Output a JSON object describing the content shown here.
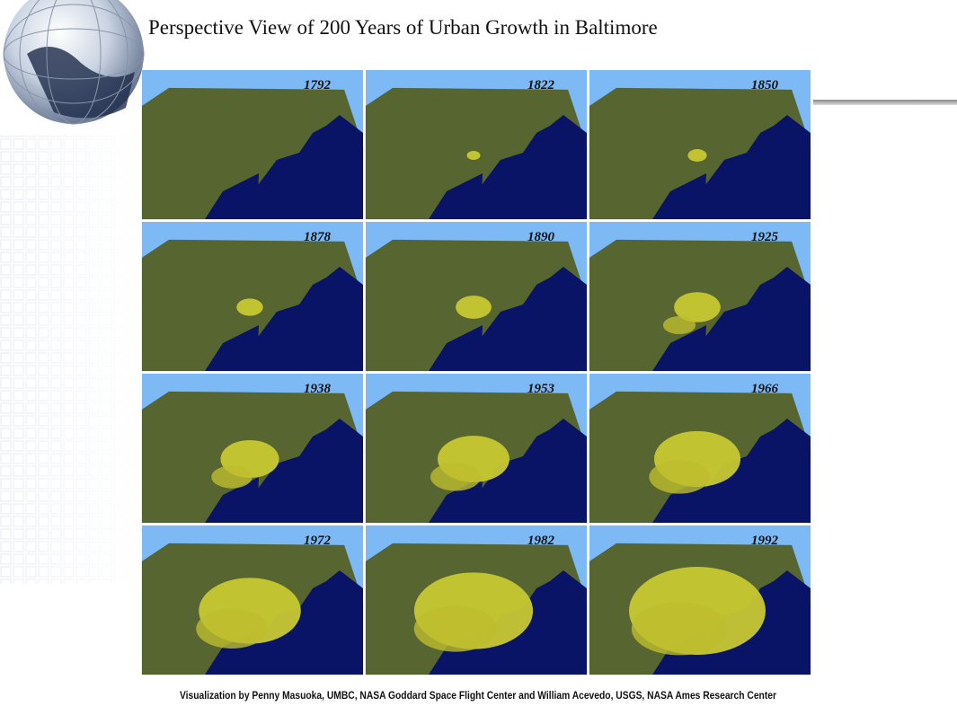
{
  "title": "Perspective View of 200 Years of Urban Growth in Baltimore",
  "panels": [
    {
      "year": "1792"
    },
    {
      "year": "1822"
    },
    {
      "year": "1850"
    },
    {
      "year": "1878"
    },
    {
      "year": "1890"
    },
    {
      "year": "1925"
    },
    {
      "year": "1938"
    },
    {
      "year": "1953"
    },
    {
      "year": "1966"
    },
    {
      "year": "1972"
    },
    {
      "year": "1982"
    },
    {
      "year": "1992"
    }
  ],
  "credit": "Visualization by Penny Masuoka, UMBC, NASA Goddard Space Flight Center and William Acevedo, USGS, NASA Ames Research Center"
}
